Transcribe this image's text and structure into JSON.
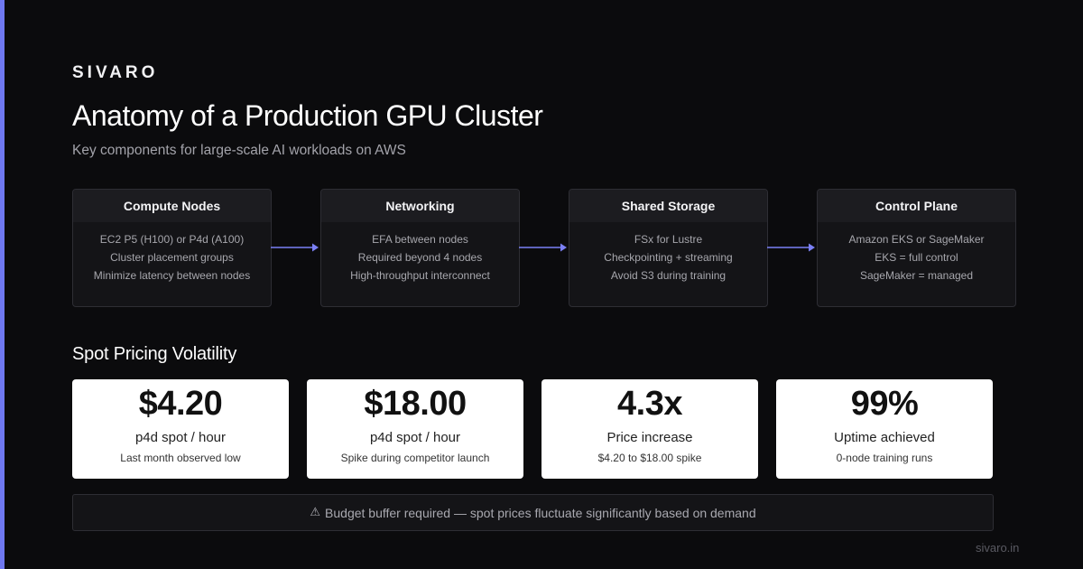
{
  "brand": "SIVARO",
  "title": "Anatomy of a Production GPU Cluster",
  "subtitle": "Key components for large-scale AI workloads on AWS",
  "flow": [
    {
      "title": "Compute Nodes",
      "lines": [
        "EC2 P5 (H100) or P4d (A100)",
        "Cluster placement groups",
        "Minimize latency between nodes"
      ]
    },
    {
      "title": "Networking",
      "lines": [
        "EFA between nodes",
        "Required beyond 4 nodes",
        "High-throughput interconnect"
      ]
    },
    {
      "title": "Shared Storage",
      "lines": [
        "FSx for Lustre",
        "Checkpointing + streaming",
        "Avoid S3 during training"
      ]
    },
    {
      "title": "Control Plane",
      "lines": [
        "Amazon EKS or SageMaker",
        "EKS = full control",
        "SageMaker = managed"
      ]
    }
  ],
  "arrow_color": "#7b80f5",
  "accent_color": "#6f78f0",
  "section_title": "Spot Pricing Volatility",
  "stats": [
    {
      "value": "$4.20",
      "label": "p4d spot / hour",
      "note": "Last month observed low"
    },
    {
      "value": "$18.00",
      "label": "p4d spot / hour",
      "note": "Spike during competitor launch"
    },
    {
      "value": "4.3x",
      "label": "Price increase",
      "note": "$4.20 to $18.00 spike"
    },
    {
      "value": "99%",
      "label": "Uptime achieved",
      "note": "0-node training runs"
    }
  ],
  "warning": {
    "icon": "warning-icon",
    "icon_glyph": "⚠",
    "text": "Budget buffer required — spot prices fluctuate significantly based on demand"
  },
  "footer": "sivaro.in"
}
